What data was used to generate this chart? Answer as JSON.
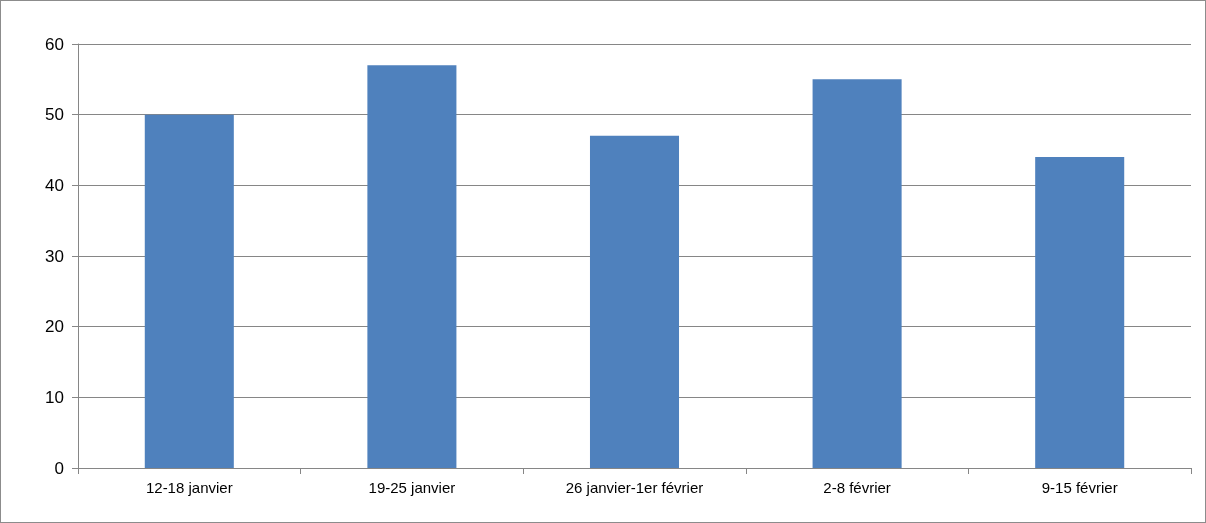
{
  "chart_data": {
    "type": "bar",
    "categories": [
      "12-18 janvier",
      "19-25 janvier",
      "26 janvier-1er février",
      "2-8 février",
      "9-15 février"
    ],
    "values": [
      50,
      57,
      47,
      55,
      44
    ],
    "color": "#4f81bd",
    "ylim": [
      0,
      60
    ],
    "yticks": [
      0,
      10,
      20,
      30,
      40,
      50,
      60
    ],
    "grid": "y"
  }
}
